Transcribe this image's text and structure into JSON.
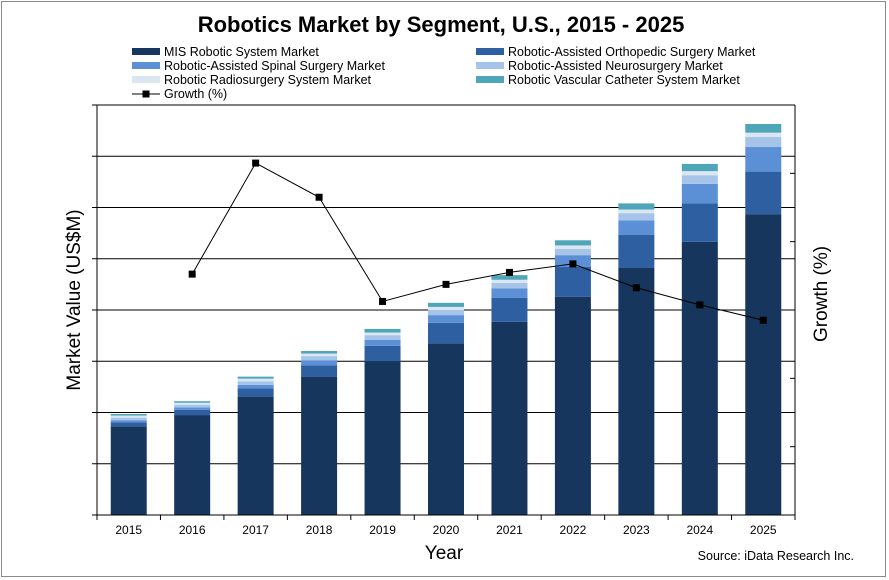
{
  "chart_data": {
    "type": "bar",
    "stacked": true,
    "title": "Robotics Market by Segment, U.S., 2015 - 2025",
    "xlabel": "Year",
    "ylabel": "Market Value (US$M)",
    "y2label": "Growth (%)",
    "source": "Source: iData Research Inc.",
    "grid": true,
    "legend_position": "top",
    "categories": [
      "2015",
      "2016",
      "2017",
      "2018",
      "2019",
      "2020",
      "2021",
      "2022",
      "2023",
      "2024",
      "2025"
    ],
    "series": [
      {
        "name": "MIS Robotic System Market",
        "color": "#17365d",
        "values": [
          1.73,
          1.95,
          2.31,
          2.7,
          3.0,
          3.35,
          3.77,
          4.26,
          4.82,
          5.33,
          5.87
        ]
      },
      {
        "name": "Robotic-Assisted Orthopedic Surgery  Market",
        "color": "#2e5fa0",
        "values": [
          0.08,
          0.1,
          0.16,
          0.22,
          0.3,
          0.4,
          0.47,
          0.58,
          0.65,
          0.75,
          0.83
        ]
      },
      {
        "name": "Robotic-Assisted Spinal Surgery Market",
        "color": "#5b90d6",
        "values": [
          0.04,
          0.05,
          0.07,
          0.1,
          0.12,
          0.15,
          0.18,
          0.23,
          0.28,
          0.38,
          0.48
        ]
      },
      {
        "name": "Robotic-Assisted Neurosurgery Market",
        "color": "#a6c4e8",
        "values": [
          0.05,
          0.05,
          0.07,
          0.08,
          0.09,
          0.1,
          0.11,
          0.12,
          0.14,
          0.17,
          0.2
        ]
      },
      {
        "name": "Robotic Radiosurgery System  Market",
        "color": "#dbe6f2",
        "values": [
          0.04,
          0.04,
          0.05,
          0.05,
          0.05,
          0.06,
          0.06,
          0.07,
          0.07,
          0.08,
          0.08
        ]
      },
      {
        "name": "Robotic Vascular Catheter System Market",
        "color": "#4ea6b8",
        "values": [
          0.03,
          0.03,
          0.04,
          0.05,
          0.07,
          0.08,
          0.09,
          0.1,
          0.12,
          0.14,
          0.17
        ]
      }
    ],
    "line_series": {
      "name": "Growth (%)",
      "color": "#000000",
      "axis": "right",
      "values": [
        null,
        12.1,
        18.6,
        16.6,
        10.5,
        11.5,
        12.2,
        12.7,
        11.3,
        10.3,
        9.4
      ]
    },
    "ylim": [
      0,
      8
    ],
    "y2lim": [
      -2,
      22
    ]
  }
}
